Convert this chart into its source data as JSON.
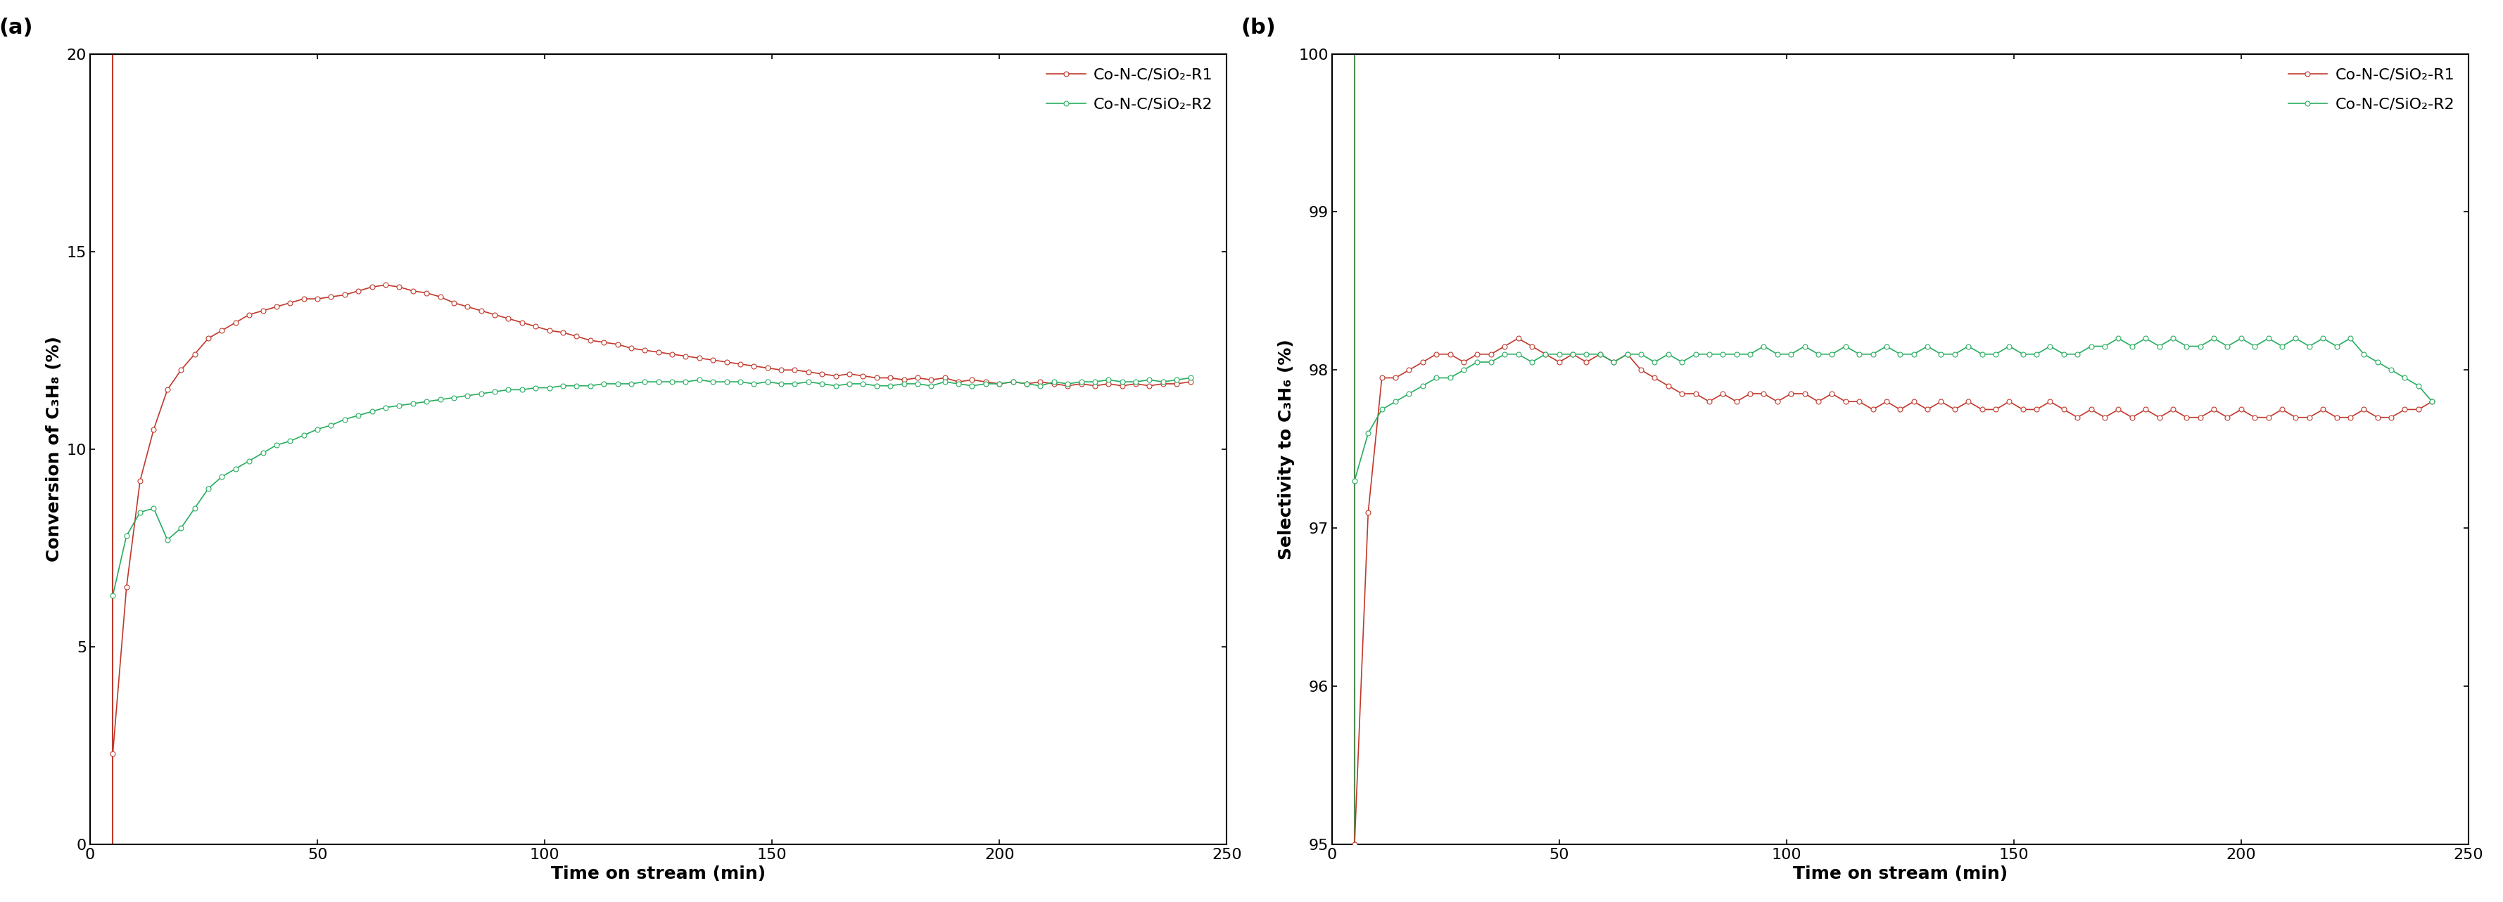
{
  "panel_a": {
    "label": "(a)",
    "xlabel": "Time on stream (min)",
    "ylabel": "Conversion of C₃H₈ (%)",
    "xlim": [
      0,
      250
    ],
    "ylim": [
      0,
      20
    ],
    "yticks": [
      0,
      5,
      10,
      15,
      20
    ],
    "xticks": [
      0,
      50,
      100,
      150,
      200,
      250
    ],
    "series": [
      {
        "label": "Co-N-C/SiO₂-R1",
        "color": "#c0392b",
        "x": [
          5,
          8,
          11,
          14,
          17,
          20,
          23,
          26,
          29,
          32,
          35,
          38,
          41,
          44,
          47,
          50,
          53,
          56,
          59,
          62,
          65,
          68,
          71,
          74,
          77,
          80,
          83,
          86,
          89,
          92,
          95,
          98,
          101,
          104,
          107,
          110,
          113,
          116,
          119,
          122,
          125,
          128,
          131,
          134,
          137,
          140,
          143,
          146,
          149,
          152,
          155,
          158,
          161,
          164,
          167,
          170,
          173,
          176,
          179,
          182,
          185,
          188,
          191,
          194,
          197,
          200,
          203,
          206,
          209,
          212,
          215,
          218,
          221,
          224,
          227,
          230,
          233,
          236,
          239,
          242
        ],
        "y": [
          2.3,
          6.5,
          9.2,
          10.5,
          11.5,
          12.0,
          12.4,
          12.8,
          13.0,
          13.2,
          13.4,
          13.5,
          13.6,
          13.7,
          13.8,
          13.8,
          13.85,
          13.9,
          14.0,
          14.1,
          14.15,
          14.1,
          14.0,
          13.95,
          13.85,
          13.7,
          13.6,
          13.5,
          13.4,
          13.3,
          13.2,
          13.1,
          13.0,
          12.95,
          12.85,
          12.75,
          12.7,
          12.65,
          12.55,
          12.5,
          12.45,
          12.4,
          12.35,
          12.3,
          12.25,
          12.2,
          12.15,
          12.1,
          12.05,
          12.0,
          12.0,
          11.95,
          11.9,
          11.85,
          11.9,
          11.85,
          11.8,
          11.8,
          11.75,
          11.8,
          11.75,
          11.8,
          11.7,
          11.75,
          11.7,
          11.65,
          11.7,
          11.65,
          11.7,
          11.65,
          11.6,
          11.65,
          11.6,
          11.65,
          11.6,
          11.65,
          11.6,
          11.65,
          11.65,
          11.7
        ]
      },
      {
        "label": "Co-N-C/SiO₂-R2",
        "color": "#27ae60",
        "x": [
          5,
          8,
          11,
          14,
          17,
          20,
          23,
          26,
          29,
          32,
          35,
          38,
          41,
          44,
          47,
          50,
          53,
          56,
          59,
          62,
          65,
          68,
          71,
          74,
          77,
          80,
          83,
          86,
          89,
          92,
          95,
          98,
          101,
          104,
          107,
          110,
          113,
          116,
          119,
          122,
          125,
          128,
          131,
          134,
          137,
          140,
          143,
          146,
          149,
          152,
          155,
          158,
          161,
          164,
          167,
          170,
          173,
          176,
          179,
          182,
          185,
          188,
          191,
          194,
          197,
          200,
          203,
          206,
          209,
          212,
          215,
          218,
          221,
          224,
          227,
          230,
          233,
          236,
          239,
          242
        ],
        "y": [
          6.3,
          7.8,
          8.4,
          8.5,
          7.7,
          8.0,
          8.5,
          9.0,
          9.3,
          9.5,
          9.7,
          9.9,
          10.1,
          10.2,
          10.35,
          10.5,
          10.6,
          10.75,
          10.85,
          10.95,
          11.05,
          11.1,
          11.15,
          11.2,
          11.25,
          11.3,
          11.35,
          11.4,
          11.45,
          11.5,
          11.5,
          11.55,
          11.55,
          11.6,
          11.6,
          11.6,
          11.65,
          11.65,
          11.65,
          11.7,
          11.7,
          11.7,
          11.7,
          11.75,
          11.7,
          11.7,
          11.7,
          11.65,
          11.7,
          11.65,
          11.65,
          11.7,
          11.65,
          11.6,
          11.65,
          11.65,
          11.6,
          11.6,
          11.65,
          11.65,
          11.6,
          11.7,
          11.65,
          11.6,
          11.65,
          11.65,
          11.7,
          11.65,
          11.6,
          11.7,
          11.65,
          11.7,
          11.7,
          11.75,
          11.7,
          11.7,
          11.75,
          11.7,
          11.75,
          11.8
        ]
      }
    ],
    "vline_x": 5,
    "vline_color": "#c0392b"
  },
  "panel_b": {
    "label": "(b)",
    "xlabel": "Time on stream (min)",
    "ylabel": "Selectivity to C₃H₆ (%)",
    "xlim": [
      0,
      250
    ],
    "ylim": [
      95,
      100
    ],
    "yticks": [
      95,
      96,
      97,
      98,
      99,
      100
    ],
    "xticks": [
      0,
      50,
      100,
      150,
      200,
      250
    ],
    "series": [
      {
        "label": "Co-N-C/SiO₂-R1",
        "color": "#c0392b",
        "x": [
          5,
          8,
          11,
          14,
          17,
          20,
          23,
          26,
          29,
          32,
          35,
          38,
          41,
          44,
          47,
          50,
          53,
          56,
          59,
          62,
          65,
          68,
          71,
          74,
          77,
          80,
          83,
          86,
          89,
          92,
          95,
          98,
          101,
          104,
          107,
          110,
          113,
          116,
          119,
          122,
          125,
          128,
          131,
          134,
          137,
          140,
          143,
          146,
          149,
          152,
          155,
          158,
          161,
          164,
          167,
          170,
          173,
          176,
          179,
          182,
          185,
          188,
          191,
          194,
          197,
          200,
          203,
          206,
          209,
          212,
          215,
          218,
          221,
          224,
          227,
          230,
          233,
          236,
          239,
          242
        ],
        "y": [
          95.0,
          97.1,
          97.95,
          97.95,
          98.0,
          98.05,
          98.1,
          98.1,
          98.05,
          98.1,
          98.1,
          98.15,
          98.2,
          98.15,
          98.1,
          98.05,
          98.1,
          98.05,
          98.1,
          98.05,
          98.1,
          98.0,
          97.95,
          97.9,
          97.85,
          97.85,
          97.8,
          97.85,
          97.8,
          97.85,
          97.85,
          97.8,
          97.85,
          97.85,
          97.8,
          97.85,
          97.8,
          97.8,
          97.75,
          97.8,
          97.75,
          97.8,
          97.75,
          97.8,
          97.75,
          97.8,
          97.75,
          97.75,
          97.8,
          97.75,
          97.75,
          97.8,
          97.75,
          97.7,
          97.75,
          97.7,
          97.75,
          97.7,
          97.75,
          97.7,
          97.75,
          97.7,
          97.7,
          97.75,
          97.7,
          97.75,
          97.7,
          97.7,
          97.75,
          97.7,
          97.7,
          97.75,
          97.7,
          97.7,
          97.75,
          97.7,
          97.7,
          97.75,
          97.75,
          97.8
        ]
      },
      {
        "label": "Co-N-C/SiO₂-R2",
        "color": "#27ae60",
        "x": [
          5,
          8,
          11,
          14,
          17,
          20,
          23,
          26,
          29,
          32,
          35,
          38,
          41,
          44,
          47,
          50,
          53,
          56,
          59,
          62,
          65,
          68,
          71,
          74,
          77,
          80,
          83,
          86,
          89,
          92,
          95,
          98,
          101,
          104,
          107,
          110,
          113,
          116,
          119,
          122,
          125,
          128,
          131,
          134,
          137,
          140,
          143,
          146,
          149,
          152,
          155,
          158,
          161,
          164,
          167,
          170,
          173,
          176,
          179,
          182,
          185,
          188,
          191,
          194,
          197,
          200,
          203,
          206,
          209,
          212,
          215,
          218,
          221,
          224,
          227,
          230,
          233,
          236,
          239,
          242
        ],
        "y": [
          97.3,
          97.6,
          97.75,
          97.8,
          97.85,
          97.9,
          97.95,
          97.95,
          98.0,
          98.05,
          98.05,
          98.1,
          98.1,
          98.05,
          98.1,
          98.1,
          98.1,
          98.1,
          98.1,
          98.05,
          98.1,
          98.1,
          98.05,
          98.1,
          98.05,
          98.1,
          98.1,
          98.1,
          98.1,
          98.1,
          98.15,
          98.1,
          98.1,
          98.15,
          98.1,
          98.1,
          98.15,
          98.1,
          98.1,
          98.15,
          98.1,
          98.1,
          98.15,
          98.1,
          98.1,
          98.15,
          98.1,
          98.1,
          98.15,
          98.1,
          98.1,
          98.15,
          98.1,
          98.1,
          98.15,
          98.15,
          98.2,
          98.15,
          98.2,
          98.15,
          98.2,
          98.15,
          98.15,
          98.2,
          98.15,
          98.2,
          98.15,
          98.2,
          98.15,
          98.2,
          98.15,
          98.2,
          98.15,
          98.2,
          98.1,
          98.05,
          98.0,
          97.95,
          97.9,
          97.8
        ]
      }
    ],
    "vline_r1_color": "#c0392b",
    "vline_r2_color": "#27ae60"
  },
  "background_color": "#ffffff",
  "marker": "o",
  "markersize": 5,
  "linewidth": 1.2,
  "label_fontsize": 18,
  "tick_fontsize": 16,
  "legend_fontsize": 16,
  "panel_label_fontsize": 22
}
